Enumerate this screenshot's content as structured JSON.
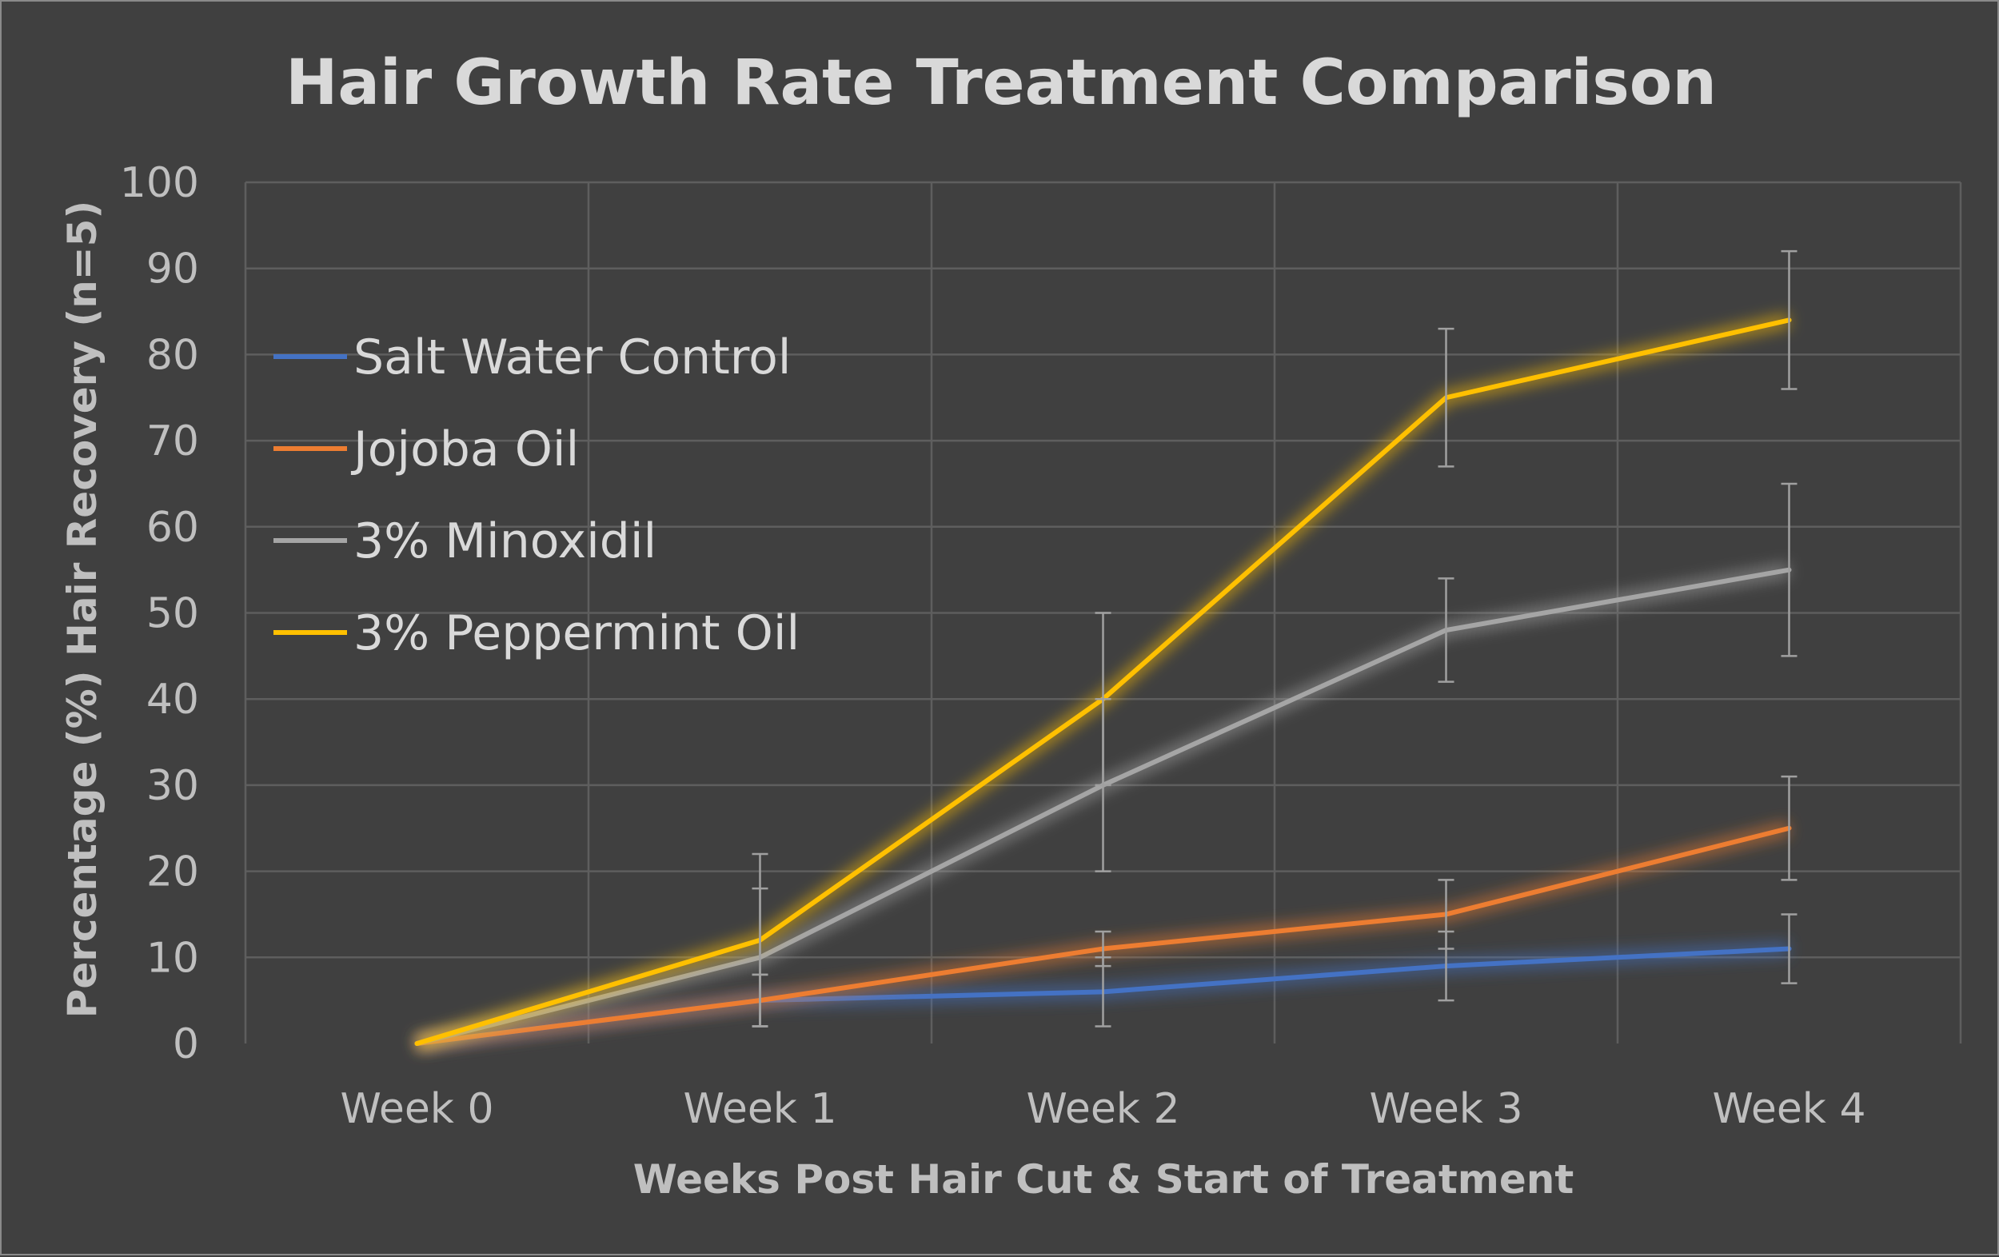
{
  "chart_data": {
    "type": "line",
    "title": "Hair Growth Rate Treatment Comparison",
    "xlabel": "Weeks Post Hair Cut & Start of Treatment",
    "ylabel": "Percentage (%) Hair Recovery (n=5)",
    "categories": [
      "Week 0",
      "Week 1",
      "Week 2",
      "Week 3",
      "Week 4"
    ],
    "ylim": [
      0,
      100
    ],
    "yticks": [
      0,
      10,
      20,
      30,
      40,
      50,
      60,
      70,
      80,
      90,
      100
    ],
    "grid": true,
    "legend": "left",
    "series": [
      {
        "name": "Salt Water Control",
        "color": "#4472c4",
        "values": [
          0,
          5,
          6,
          9,
          11
        ],
        "errors": [
          0,
          3,
          4,
          4,
          4
        ]
      },
      {
        "name": "Jojoba Oil",
        "color": "#ed7d31",
        "values": [
          0,
          5,
          11,
          15,
          25
        ],
        "errors": [
          0,
          3,
          2,
          4,
          6
        ]
      },
      {
        "name": "3% Minoxidil",
        "color": "#a5a5a5",
        "values": [
          0,
          10,
          30,
          48,
          55
        ],
        "errors": [
          0,
          8,
          10,
          6,
          10
        ]
      },
      {
        "name": "3% Peppermint Oil",
        "color": "#ffc000",
        "values": [
          0,
          12,
          40,
          75,
          84
        ],
        "errors": [
          0,
          10,
          10,
          8,
          8
        ]
      }
    ]
  }
}
